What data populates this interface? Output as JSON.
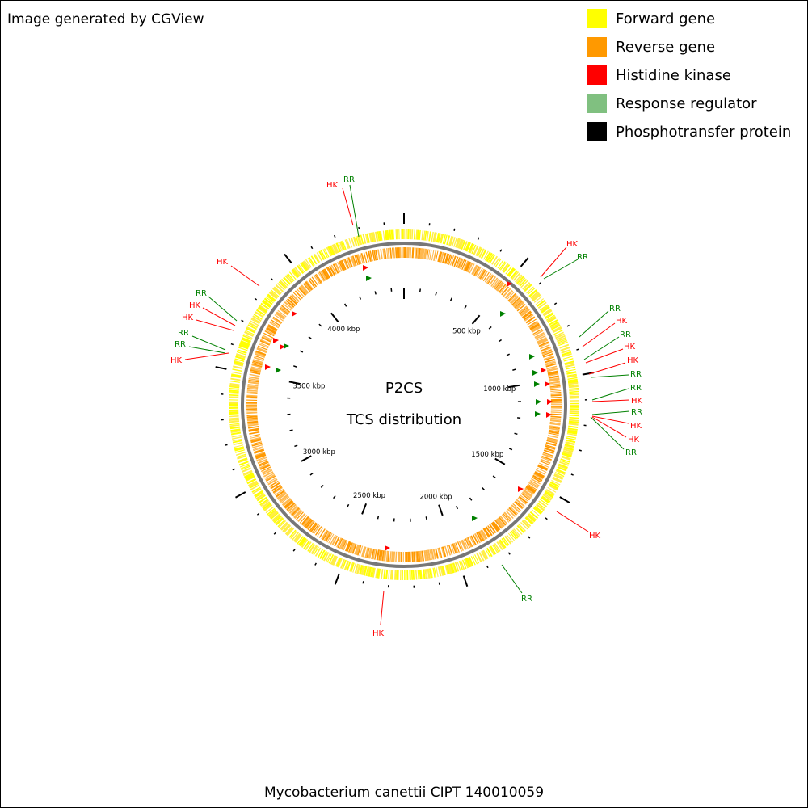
{
  "header": {
    "text": "Image generated by CGView"
  },
  "legend": [
    {
      "label": "Forward gene",
      "color": "#ffff00"
    },
    {
      "label": "Reverse gene",
      "color": "#ff9900"
    },
    {
      "label": "Histidine kinase",
      "color": "#ff0000"
    },
    {
      "label": "Response regulator",
      "color": "#80c080"
    },
    {
      "label": "Phosphotransfer protein",
      "color": "#000000"
    }
  ],
  "map": {
    "title": "P2CS",
    "subtitle": "TCS distribution",
    "tick_labels": [
      "500 kbp",
      "1000 kbp",
      "1500 kbp",
      "2000 kbp",
      "2500 kbp",
      "3000 kbp",
      "3500 kbp",
      "4000 kbp"
    ],
    "feature_labels": [
      "HK",
      "RR",
      "HK",
      "RR",
      "HK",
      "RR",
      "HK",
      "HK",
      "RR",
      "RR",
      "HK",
      "RR",
      "HK",
      "RR",
      "HK",
      "HK",
      "RR",
      "RR",
      "HK",
      "RR",
      "HK",
      "HK",
      "RR",
      "HK",
      "RR",
      "HK"
    ]
  },
  "footer": {
    "text": "Mycobacterium canettii CIPT 140010059"
  }
}
